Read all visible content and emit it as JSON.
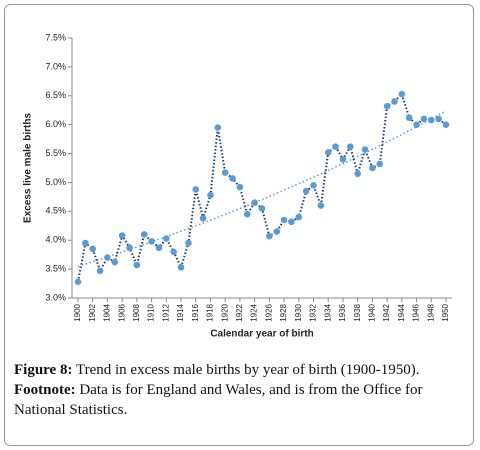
{
  "chart_data": {
    "type": "line",
    "y_label": "Excess live male births",
    "x_label": "Calendar year of birth",
    "x": [
      1900,
      1901,
      1902,
      1903,
      1904,
      1905,
      1906,
      1907,
      1908,
      1909,
      1910,
      1911,
      1912,
      1913,
      1914,
      1915,
      1916,
      1917,
      1918,
      1919,
      1920,
      1921,
      1922,
      1923,
      1924,
      1925,
      1926,
      1927,
      1928,
      1929,
      1930,
      1931,
      1932,
      1933,
      1934,
      1935,
      1936,
      1937,
      1938,
      1939,
      1940,
      1941,
      1942,
      1943,
      1944,
      1945,
      1946,
      1947,
      1948,
      1949,
      1950
    ],
    "values": [
      3.28,
      3.95,
      3.85,
      3.47,
      3.7,
      3.62,
      4.08,
      3.87,
      3.57,
      4.1,
      3.98,
      3.87,
      4.03,
      3.8,
      3.53,
      3.95,
      4.88,
      4.38,
      4.78,
      5.95,
      5.17,
      5.07,
      4.92,
      4.45,
      4.65,
      4.55,
      4.07,
      4.15,
      4.35,
      4.32,
      4.4,
      4.85,
      4.95,
      4.6,
      5.52,
      5.62,
      5.4,
      5.62,
      5.15,
      5.57,
      5.25,
      5.32,
      6.32,
      6.4,
      6.53,
      6.12,
      6.0,
      6.1,
      6.08,
      6.1,
      6.0
    ],
    "color": "#5b9bd5",
    "line_color": "#1f3864",
    "trendline": "exponential",
    "trend_color": "#5b9bd5",
    "xlim": [
      1900,
      1950
    ],
    "xticks": [
      1900,
      1902,
      1904,
      1906,
      1908,
      1910,
      1912,
      1914,
      1916,
      1918,
      1920,
      1922,
      1924,
      1926,
      1928,
      1930,
      1932,
      1934,
      1936,
      1938,
      1940,
      1942,
      1944,
      1946,
      1948,
      1950
    ],
    "ylim": [
      3.0,
      7.5
    ],
    "yticks": [
      {
        "value": 3.0,
        "label": "3.0%"
      },
      {
        "value": 3.5,
        "label": "3.5%"
      },
      {
        "value": 4.0,
        "label": "4.0%"
      },
      {
        "value": 4.5,
        "label": "4.5%"
      },
      {
        "value": 5.0,
        "label": "5.0%"
      },
      {
        "value": 5.5,
        "label": "5.5%"
      },
      {
        "value": 6.0,
        "label": "6.0%"
      },
      {
        "value": 6.5,
        "label": "6.5%"
      },
      {
        "value": 7.0,
        "label": "7.0%"
      },
      {
        "value": 7.5,
        "label": "7.5%"
      }
    ]
  },
  "caption": {
    "figure_label": "Figure 8:",
    "figure_text": "Trend in excess male births by year of birth (1900-1950).",
    "footnote_label": "Footnote:",
    "footnote_text": "Data is for England and Wales, and is from the Office for National Statistics."
  }
}
